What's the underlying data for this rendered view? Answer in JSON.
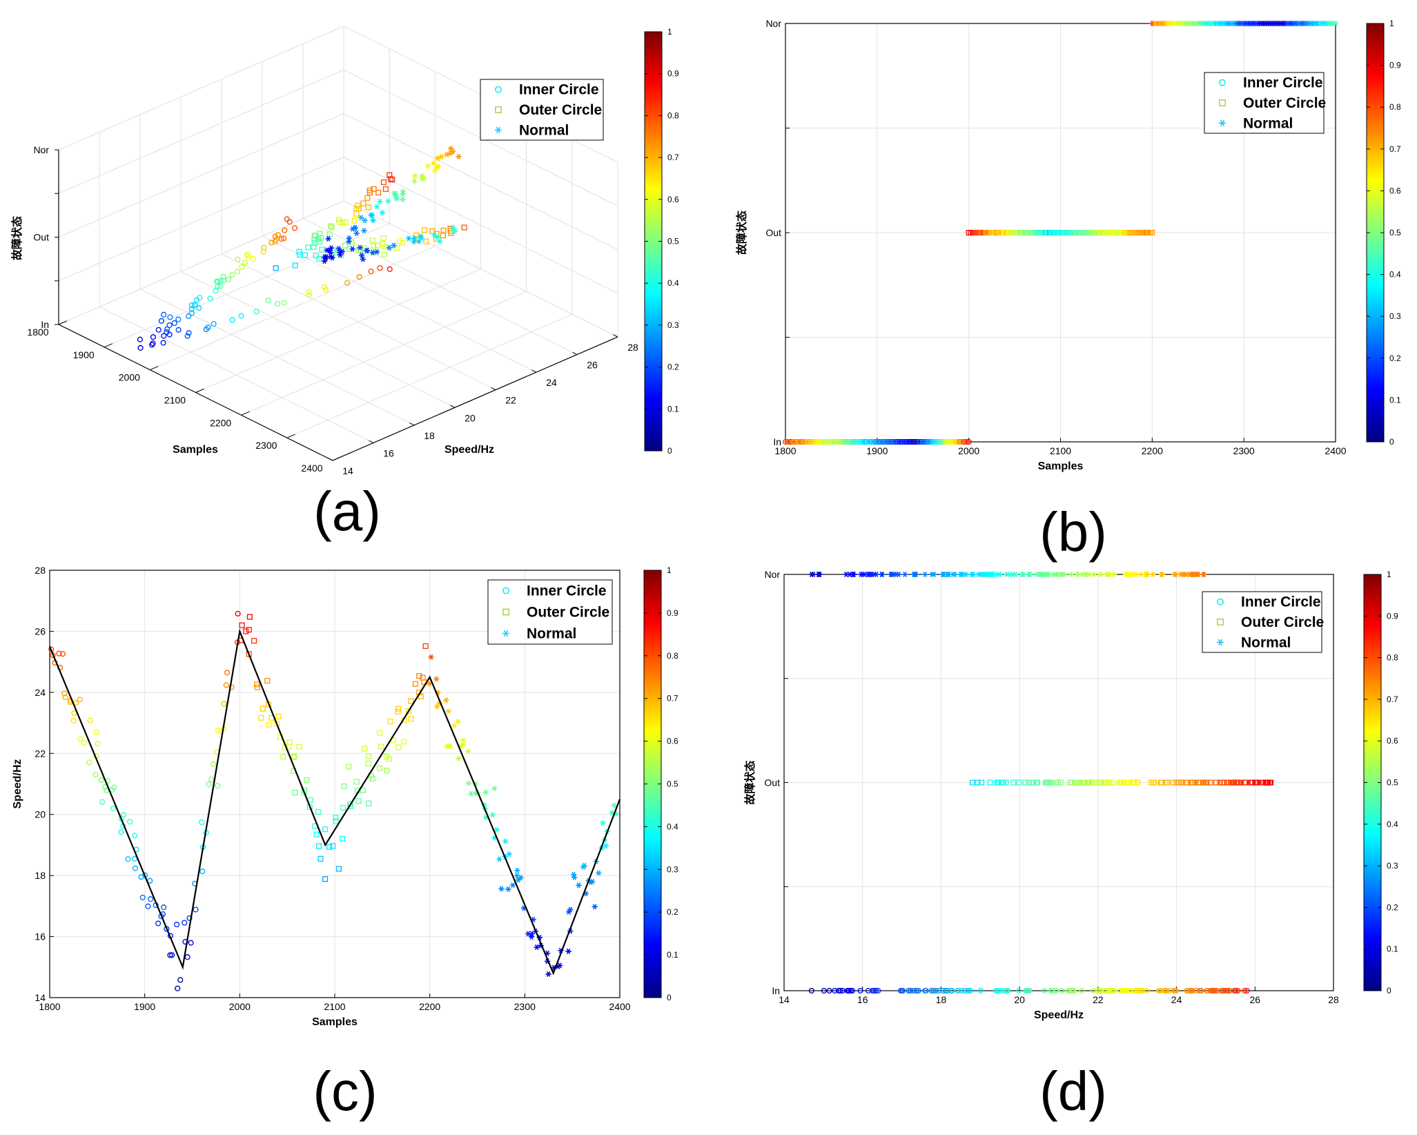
{
  "colormap": {
    "stops": [
      "#00007f",
      "#0000ff",
      "#007fff",
      "#00ffff",
      "#7fff7f",
      "#ffff00",
      "#ff7f00",
      "#ff0000",
      "#7f0000"
    ],
    "ticks": [
      "0",
      "0.1",
      "0.2",
      "0.3",
      "0.4",
      "0.5",
      "0.6",
      "0.7",
      "0.8",
      "0.9",
      "1"
    ]
  },
  "legend": {
    "entries": [
      {
        "label": "Inner Circle",
        "marker": "circle",
        "color": "#00e5ee"
      },
      {
        "label": "Outer Circle",
        "marker": "square",
        "color": "#9acd32"
      },
      {
        "label": "Normal",
        "marker": "star",
        "color": "#1ec8ff"
      }
    ]
  },
  "chart_data": [
    {
      "id": "a",
      "panel_label": "(a)",
      "type": "scatter",
      "projection": "3d",
      "title": "",
      "xlabel": "Samples",
      "ylabel": "Speed/Hz",
      "zlabel": "故障状态",
      "xlim": [
        1800,
        2400
      ],
      "ylim": [
        14,
        28
      ],
      "x_ticks": [
        "1800",
        "1900",
        "2000",
        "2100",
        "2200",
        "2300",
        "2400"
      ],
      "y_ticks": [
        "14",
        "16",
        "18",
        "20",
        "22",
        "24",
        "26",
        "28"
      ],
      "z_ticks": [
        "In",
        "Out",
        "Nor"
      ],
      "series": [
        {
          "name": "Inner Circle",
          "class_level": "In",
          "x_range": [
            1800,
            2000
          ]
        },
        {
          "name": "Outer Circle",
          "class_level": "Out",
          "x_range": [
            2000,
            2200
          ]
        },
        {
          "name": "Normal",
          "class_level": "Nor",
          "x_range": [
            2200,
            2400
          ]
        }
      ],
      "grid": true,
      "legend": "top-right"
    },
    {
      "id": "b",
      "panel_label": "(b)",
      "type": "scatter",
      "title": "",
      "xlabel": "Samples",
      "ylabel": "故障状态",
      "xlim": [
        1800,
        2400
      ],
      "x_ticks": [
        "1800",
        "1900",
        "2000",
        "2100",
        "2200",
        "2300",
        "2400"
      ],
      "y_ticks": [
        "In",
        "Out",
        "Nor"
      ],
      "series": [
        {
          "name": "Inner Circle",
          "class_level": "In",
          "x_range": [
            1800,
            2000
          ]
        },
        {
          "name": "Outer Circle",
          "class_level": "Out",
          "x_range": [
            2000,
            2200
          ]
        },
        {
          "name": "Normal",
          "class_level": "Nor",
          "x_range": [
            2200,
            2400
          ]
        }
      ],
      "grid": true,
      "legend": "top-right"
    },
    {
      "id": "c",
      "panel_label": "(c)",
      "type": "scatter",
      "title": "",
      "xlabel": "Samples",
      "ylabel": "Speed/Hz",
      "xlim": [
        1800,
        2400
      ],
      "ylim": [
        14,
        28
      ],
      "x_ticks": [
        "1800",
        "1900",
        "2000",
        "2100",
        "2200",
        "2300",
        "2400"
      ],
      "y_ticks": [
        "14",
        "16",
        "18",
        "20",
        "22",
        "24",
        "26",
        "28"
      ],
      "speed_profile": {
        "x": [
          1800,
          1940,
          2000,
          2090,
          2200,
          2330,
          2400
        ],
        "y": [
          25.5,
          15.0,
          26.0,
          19.0,
          24.5,
          14.8,
          20.5
        ]
      },
      "series": [
        {
          "name": "Inner Circle",
          "x_range": [
            1800,
            2000
          ]
        },
        {
          "name": "Outer Circle",
          "x_range": [
            2000,
            2200
          ]
        },
        {
          "name": "Normal",
          "x_range": [
            2200,
            2400
          ]
        }
      ],
      "grid": true,
      "legend": "top-right"
    },
    {
      "id": "d",
      "panel_label": "(d)",
      "type": "scatter",
      "title": "",
      "xlabel": "Speed/Hz",
      "ylabel": "故障状态",
      "xlim": [
        14,
        28
      ],
      "x_ticks": [
        "14",
        "16",
        "18",
        "20",
        "22",
        "24",
        "26",
        "28"
      ],
      "y_ticks": [
        "In",
        "Out",
        "Nor"
      ],
      "series": [
        {
          "name": "Inner Circle",
          "class_level": "In",
          "speed_range": [
            14.7,
            25.8
          ]
        },
        {
          "name": "Outer Circle",
          "class_level": "Out",
          "speed_range": [
            18.8,
            26.4
          ]
        },
        {
          "name": "Normal",
          "class_level": "Nor",
          "speed_range": [
            14.7,
            24.7
          ]
        }
      ],
      "grid": true,
      "legend": "top-right"
    }
  ]
}
